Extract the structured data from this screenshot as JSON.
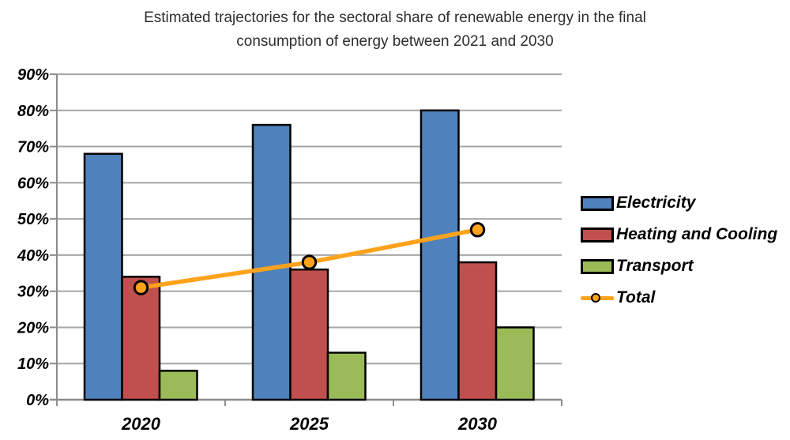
{
  "header": {
    "title_line1": "Estimated trajectories for the sectoral share of renewable energy in the final",
    "title_line2": "consumption of energy between 2021 and 2030"
  },
  "chart_data": {
    "type": "bar",
    "title": "Estimated trajectories for the sectoral share of renewable energy in the final consumption of energy between 2021 and 2030",
    "categories": [
      "2020",
      "2025",
      "2030"
    ],
    "series": [
      {
        "name": "Electricity",
        "type": "bar",
        "color": "#4F81BD",
        "values": [
          68,
          76,
          80
        ]
      },
      {
        "name": "Heating and Cooling",
        "type": "bar",
        "color": "#C0504D",
        "values": [
          34,
          36,
          38
        ]
      },
      {
        "name": "Transport",
        "type": "bar",
        "color": "#9BBB59",
        "values": [
          8,
          13,
          20
        ]
      },
      {
        "name": "Total",
        "type": "line",
        "color": "#FFA31C",
        "values": [
          31,
          38,
          47
        ]
      }
    ],
    "xlabel": "",
    "ylabel": "",
    "ylim": [
      0,
      90
    ],
    "ytick_step": 10,
    "ytick_suffix": "%",
    "grid": true,
    "legend_position": "right",
    "colors": {
      "gridline": "#A6A6A6",
      "axis": "#8C8C8C",
      "bar_border": "#000000",
      "marker_fill": "#FFA31C",
      "marker_border": "#000000",
      "tick_label": "#000000",
      "title_text": "#2E2E2E",
      "background": "#FFFFFF"
    }
  }
}
